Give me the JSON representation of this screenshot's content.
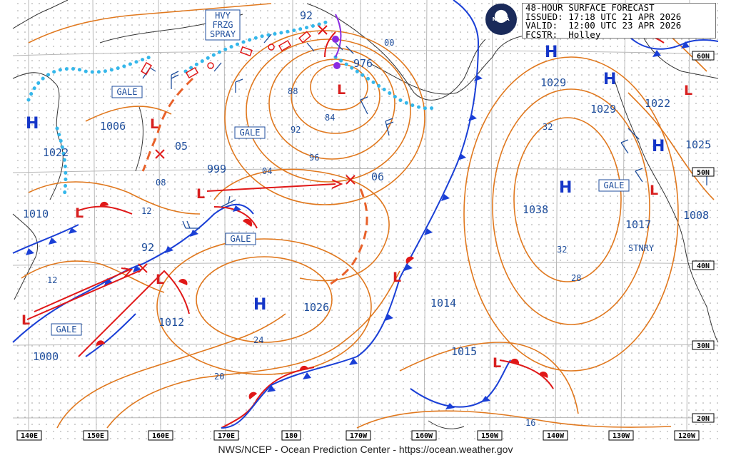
{
  "header": {
    "line1": "48-HOUR SURFACE FORECAST",
    "line2": "ISSUED: 17:18 UTC 21 APR 2026",
    "line3": "VALID:  12:00 UTC 23 APR 2026",
    "line4": "FCSTR:  Holley"
  },
  "logo_text": "NOAA",
  "footer": "NWS/NCEP - Ocean Prediction Center - https://ocean.weather.gov",
  "lon_labels": [
    "140E",
    "150E",
    "160E",
    "170E",
    "180",
    "170W",
    "160W",
    "150W",
    "140W",
    "130W",
    "120W"
  ],
  "lat_labels": [
    "60N",
    "50N",
    "40N",
    "30N",
    "20N"
  ],
  "pressure_labels": [
    "1006",
    "1022",
    "1010",
    "999",
    "05",
    "976",
    "92",
    "92",
    "1012",
    "1026",
    "1000",
    "1014",
    "1015",
    "06",
    "1029",
    "1029",
    "1022",
    "1025",
    "1038",
    "1017",
    "1008"
  ],
  "iso_labels": [
    "00",
    "88",
    "84",
    "92",
    "96",
    "04",
    "08",
    "12",
    "12",
    "24",
    "20",
    "16",
    "28",
    "32",
    "32",
    "12"
  ],
  "highs": [
    "H",
    "H",
    "H",
    "H",
    "H",
    "H",
    "H"
  ],
  "lows": [
    "L",
    "L",
    "L",
    "L",
    "L",
    "L",
    "L",
    "L",
    "L",
    "L"
  ],
  "warnings": [
    "HVY",
    "FRZG",
    "SPRAY",
    "GALE",
    "GALE",
    "GALE",
    "GALE",
    "GALE"
  ],
  "stnry": "STNRY",
  "colors": {
    "isobar": "#e0781e",
    "cold_front": "#1a3fd6",
    "warm_front": "#e01818",
    "ice_edge": "#35b7ea",
    "grid": "#b8b8b8",
    "label": "#1f4e9c"
  }
}
